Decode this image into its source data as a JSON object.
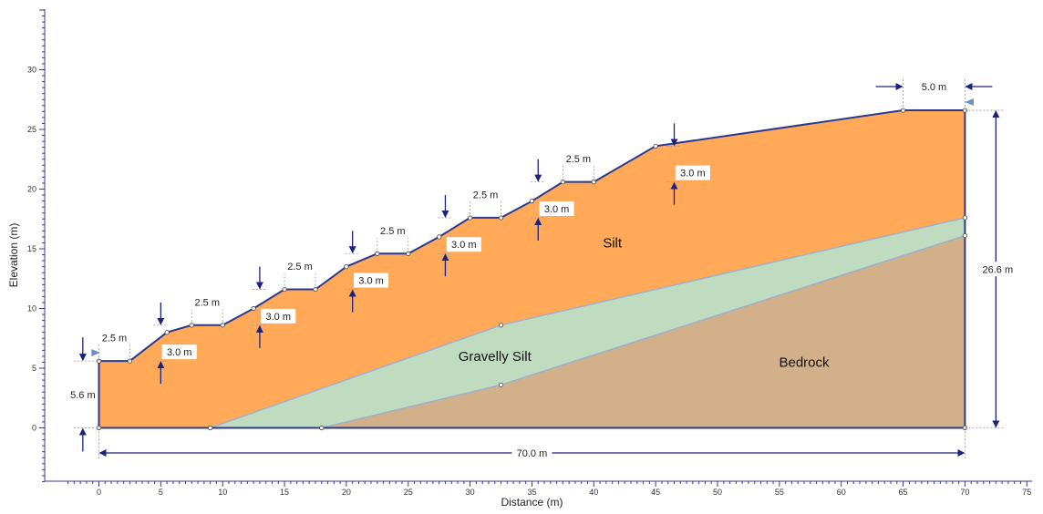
{
  "axes": {
    "xlabel": "Distance (m)",
    "ylabel": "Elevation (m)",
    "xticks": [
      "0",
      "5",
      "10",
      "15",
      "20",
      "25",
      "30",
      "35",
      "40",
      "45",
      "50",
      "55",
      "60",
      "65",
      "70",
      "75"
    ],
    "yticks": [
      "0",
      "5",
      "10",
      "15",
      "20",
      "25",
      "30"
    ]
  },
  "materials": [
    {
      "name": "Silt",
      "color": "#FFA959",
      "label_at": [
        41.5,
        15.5
      ]
    },
    {
      "name": "Gravelly Silt",
      "color": "#BFDCC0",
      "label_at": [
        32,
        6
      ]
    },
    {
      "name": "Bedrock",
      "color": "#D1B08A",
      "label_at": [
        57,
        5.5
      ]
    }
  ],
  "geometry": {
    "surface": [
      [
        0,
        5.6
      ],
      [
        2.5,
        5.6
      ],
      [
        5.5,
        8
      ],
      [
        7.5,
        8.6
      ],
      [
        10,
        8.6
      ],
      [
        12.5,
        10
      ],
      [
        15,
        11.6
      ],
      [
        17.5,
        11.6
      ],
      [
        20,
        13.5
      ],
      [
        22.5,
        14.6
      ],
      [
        25,
        14.6
      ],
      [
        27.5,
        16
      ],
      [
        30,
        17.6
      ],
      [
        32.5,
        17.6
      ],
      [
        35,
        19
      ],
      [
        37.5,
        20.6
      ],
      [
        40,
        20.6
      ],
      [
        45,
        23.6
      ],
      [
        65,
        26.6
      ],
      [
        70,
        26.6
      ]
    ],
    "silt_base": [
      [
        70,
        17.6
      ],
      [
        32.5,
        8.6
      ],
      [
        9,
        0
      ]
    ],
    "bedrock_top": [
      [
        70,
        16.1
      ],
      [
        32.5,
        3.6
      ],
      [
        18,
        0
      ]
    ]
  },
  "dimensions": {
    "bench_widths": [
      "2.5 m",
      "2.5 m",
      "2.5 m",
      "2.5 m",
      "2.5 m",
      "2.5 m"
    ],
    "bench_heights": [
      "3.0 m",
      "3.0 m",
      "3.0 m",
      "3.0 m",
      "3.0 m",
      "3.0 m"
    ],
    "crest_width": "5.0 m",
    "toe_height": "5.6 m",
    "total_height": "26.6 m",
    "total_length": "70.0 m"
  },
  "colors": {
    "outline": "#2B3A8C",
    "dim_line": "#1A237E",
    "axis": "#3A3A8C",
    "water_marker": "#6A8FC0"
  }
}
